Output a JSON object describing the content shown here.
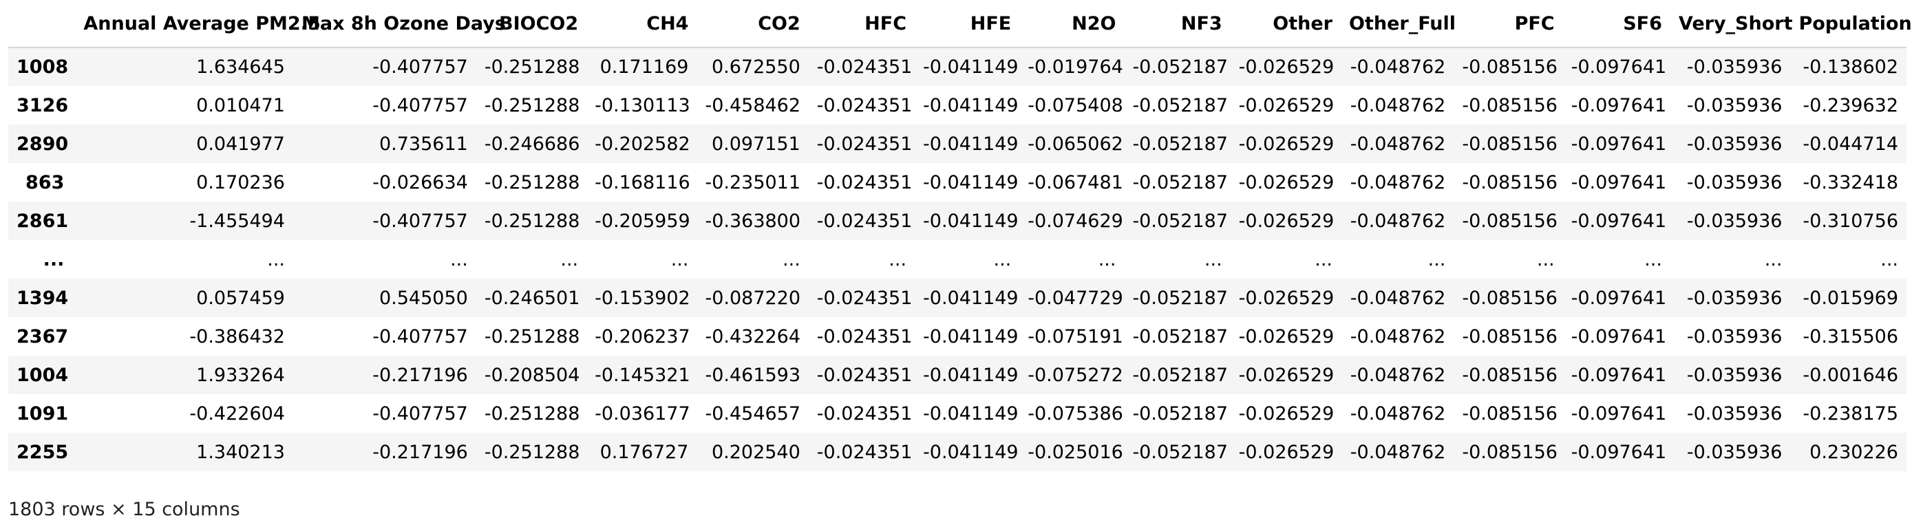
{
  "table": {
    "index_header": "",
    "columns": [
      "Annual Average PM2.5",
      "Max 8h Ozone Days",
      "BIOCO2",
      "CH4",
      "CO2",
      "HFC",
      "HFE",
      "N2O",
      "NF3",
      "Other",
      "Other_Full",
      "PFC",
      "SF6",
      "Very_Short",
      "Population"
    ],
    "rows": [
      {
        "index": "1008",
        "cells": [
          "1.634645",
          "-0.407757",
          "-0.251288",
          "0.171169",
          "0.672550",
          "-0.024351",
          "-0.041149",
          "-0.019764",
          "-0.052187",
          "-0.026529",
          "-0.048762",
          "-0.085156",
          "-0.097641",
          "-0.035936",
          "-0.138602"
        ]
      },
      {
        "index": "3126",
        "cells": [
          "0.010471",
          "-0.407757",
          "-0.251288",
          "-0.130113",
          "-0.458462",
          "-0.024351",
          "-0.041149",
          "-0.075408",
          "-0.052187",
          "-0.026529",
          "-0.048762",
          "-0.085156",
          "-0.097641",
          "-0.035936",
          "-0.239632"
        ]
      },
      {
        "index": "2890",
        "cells": [
          "0.041977",
          "0.735611",
          "-0.246686",
          "-0.202582",
          "0.097151",
          "-0.024351",
          "-0.041149",
          "-0.065062",
          "-0.052187",
          "-0.026529",
          "-0.048762",
          "-0.085156",
          "-0.097641",
          "-0.035936",
          "-0.044714"
        ]
      },
      {
        "index": "863",
        "cells": [
          "0.170236",
          "-0.026634",
          "-0.251288",
          "-0.168116",
          "-0.235011",
          "-0.024351",
          "-0.041149",
          "-0.067481",
          "-0.052187",
          "-0.026529",
          "-0.048762",
          "-0.085156",
          "-0.097641",
          "-0.035936",
          "-0.332418"
        ]
      },
      {
        "index": "2861",
        "cells": [
          "-1.455494",
          "-0.407757",
          "-0.251288",
          "-0.205959",
          "-0.363800",
          "-0.024351",
          "-0.041149",
          "-0.074629",
          "-0.052187",
          "-0.026529",
          "-0.048762",
          "-0.085156",
          "-0.097641",
          "-0.035936",
          "-0.310756"
        ]
      },
      {
        "index": "...",
        "cells": [
          "...",
          "...",
          "...",
          "...",
          "...",
          "...",
          "...",
          "...",
          "...",
          "...",
          "...",
          "...",
          "...",
          "...",
          "..."
        ]
      },
      {
        "index": "1394",
        "cells": [
          "0.057459",
          "0.545050",
          "-0.246501",
          "-0.153902",
          "-0.087220",
          "-0.024351",
          "-0.041149",
          "-0.047729",
          "-0.052187",
          "-0.026529",
          "-0.048762",
          "-0.085156",
          "-0.097641",
          "-0.035936",
          "-0.015969"
        ]
      },
      {
        "index": "2367",
        "cells": [
          "-0.386432",
          "-0.407757",
          "-0.251288",
          "-0.206237",
          "-0.432264",
          "-0.024351",
          "-0.041149",
          "-0.075191",
          "-0.052187",
          "-0.026529",
          "-0.048762",
          "-0.085156",
          "-0.097641",
          "-0.035936",
          "-0.315506"
        ]
      },
      {
        "index": "1004",
        "cells": [
          "1.933264",
          "-0.217196",
          "-0.208504",
          "-0.145321",
          "-0.461593",
          "-0.024351",
          "-0.041149",
          "-0.075272",
          "-0.052187",
          "-0.026529",
          "-0.048762",
          "-0.085156",
          "-0.097641",
          "-0.035936",
          "-0.001646"
        ]
      },
      {
        "index": "1091",
        "cells": [
          "-0.422604",
          "-0.407757",
          "-0.251288",
          "-0.036177",
          "-0.454657",
          "-0.024351",
          "-0.041149",
          "-0.075386",
          "-0.052187",
          "-0.026529",
          "-0.048762",
          "-0.085156",
          "-0.097641",
          "-0.035936",
          "-0.238175"
        ]
      },
      {
        "index": "2255",
        "cells": [
          "1.340213",
          "-0.217196",
          "-0.251288",
          "0.176727",
          "0.202540",
          "-0.024351",
          "-0.041149",
          "-0.025016",
          "-0.052187",
          "-0.026529",
          "-0.048762",
          "-0.085156",
          "-0.097641",
          "-0.035936",
          "0.230226"
        ]
      }
    ]
  },
  "footer": {
    "shape_text": "1803 rows × 15 columns"
  }
}
